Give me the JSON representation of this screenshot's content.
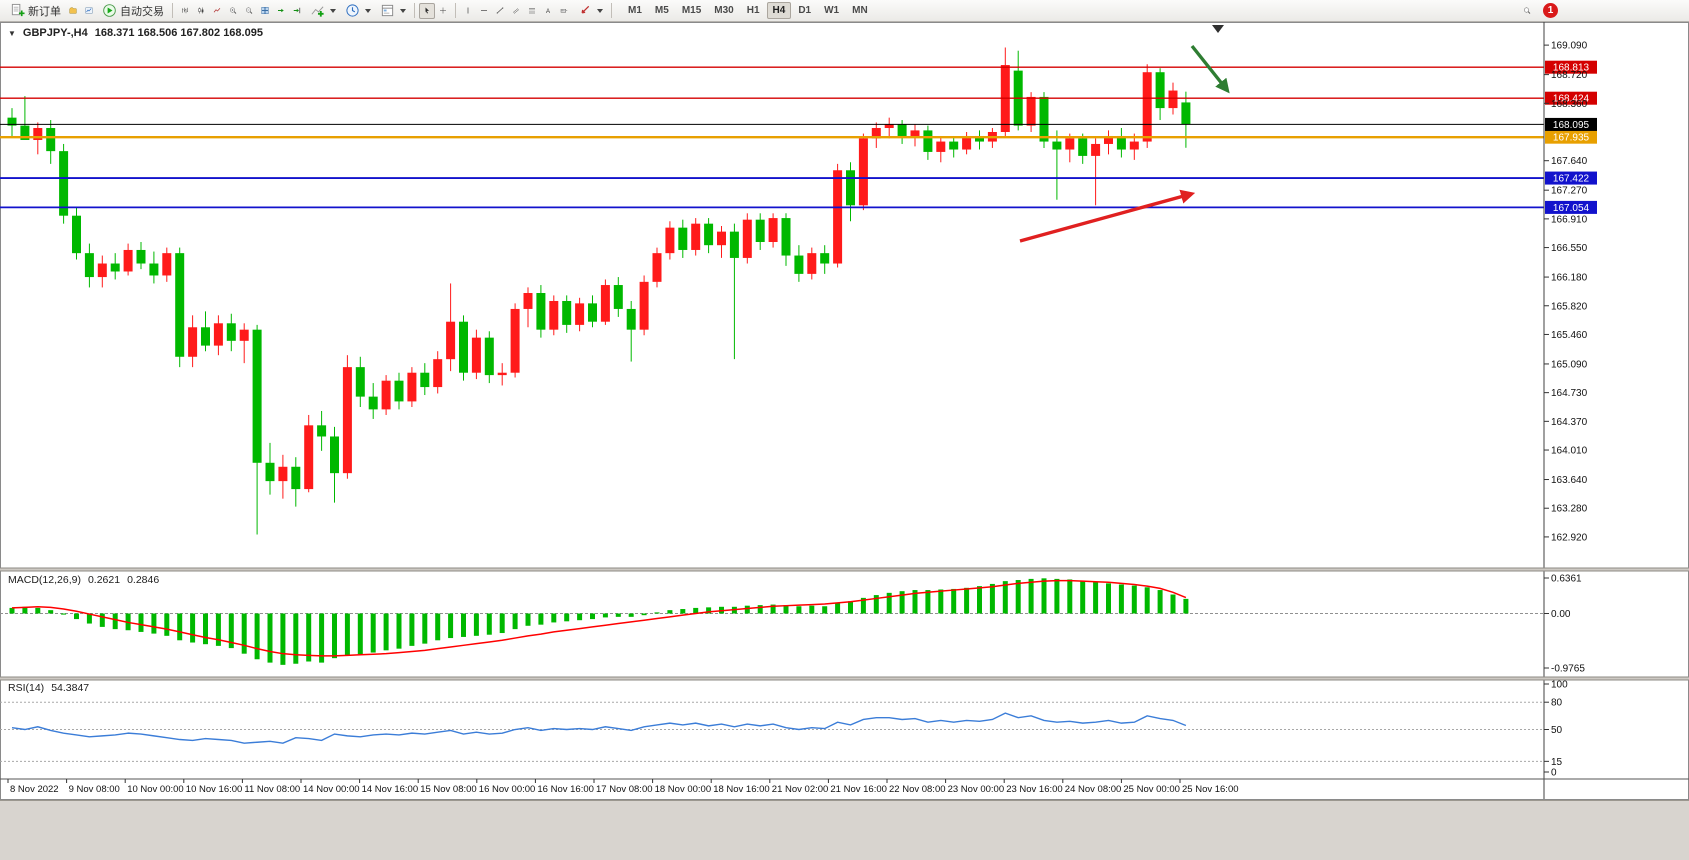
{
  "toolbar": {
    "new_order": {
      "label": "新订单"
    },
    "autotrade": {
      "label": "自动交易"
    },
    "timeframes": [
      "M1",
      "M5",
      "M15",
      "M30",
      "H1",
      "H4",
      "D1",
      "W1",
      "MN"
    ],
    "active_timeframe": "H4",
    "notification_badge": "1"
  },
  "chart_header": {
    "collapse_icon": "▼",
    "symbol": "GBPJPY-,H4",
    "ohlc_text": "168.371 168.506 167.802 168.095"
  },
  "macd_panel": {
    "label": "MACD(12,26,9)",
    "value_main": "0.2621",
    "value_signal": "0.2846",
    "axis_labels": [
      "0.6361",
      "0.00",
      "-0.9765"
    ]
  },
  "rsi_panel": {
    "label": "RSI(14)",
    "value": "54.3847",
    "axis_labels": [
      "100",
      "80",
      "50",
      "15",
      "0"
    ]
  },
  "chart_data": {
    "type": "candlestick",
    "symbol": "GBPJPY",
    "timeframe": "H4",
    "colors": {
      "up": "#ff1a1a",
      "down": "#00b800",
      "macd_hist": "#00b800",
      "macd_signal": "#ff0000",
      "rsi_line": "#3b7dd8"
    },
    "price_ylim": [
      162.53,
      169.38
    ],
    "price_axis_ticks": [
      "169.090",
      "168.720",
      "168.360",
      "167.640",
      "167.270",
      "166.910",
      "166.550",
      "166.180",
      "165.820",
      "165.460",
      "165.090",
      "164.730",
      "164.370",
      "164.010",
      "163.640",
      "163.280",
      "162.920"
    ],
    "hlines": [
      {
        "price": 168.813,
        "label": "168.813",
        "color": "#d40000",
        "width": 1.3
      },
      {
        "price": 168.424,
        "label": "168.424",
        "color": "#d40000",
        "width": 1.3
      },
      {
        "price": 167.935,
        "label": "167.935",
        "color": "#e8a000",
        "width": 2.4
      },
      {
        "price": 167.422,
        "label": "167.422",
        "color": "#1212cc",
        "width": 1.8
      },
      {
        "price": 167.054,
        "label": "167.054",
        "color": "#1212cc",
        "width": 1.8
      }
    ],
    "current_price": {
      "price": 168.095,
      "label": "168.095",
      "color": "#000000"
    },
    "time_labels": [
      "8 Nov 2022",
      "9 Nov 08:00",
      "10 Nov 00:00",
      "10 Nov 16:00",
      "11 Nov 08:00",
      "14 Nov 00:00",
      "14 Nov 16:00",
      "15 Nov 08:00",
      "16 Nov 00:00",
      "16 Nov 16:00",
      "17 Nov 08:00",
      "18 Nov 00:00",
      "18 Nov 16:00",
      "21 Nov 02:00",
      "21 Nov 16:00",
      "22 Nov 08:00",
      "23 Nov 00:00",
      "23 Nov 16:00",
      "24 Nov 08:00",
      "25 Nov 00:00",
      "25 Nov 16:00"
    ],
    "candles": [
      [
        168.18,
        168.3,
        167.95,
        168.08
      ],
      [
        168.08,
        168.45,
        167.92,
        167.9
      ],
      [
        167.9,
        168.12,
        167.72,
        168.05
      ],
      [
        168.05,
        168.15,
        167.6,
        167.76
      ],
      [
        167.76,
        167.85,
        166.85,
        166.95
      ],
      [
        166.95,
        167.05,
        166.4,
        166.48
      ],
      [
        166.48,
        166.6,
        166.05,
        166.18
      ],
      [
        166.18,
        166.45,
        166.05,
        166.35
      ],
      [
        166.35,
        166.48,
        166.15,
        166.25
      ],
      [
        166.25,
        166.6,
        166.2,
        166.52
      ],
      [
        166.52,
        166.62,
        166.28,
        166.35
      ],
      [
        166.35,
        166.5,
        166.1,
        166.2
      ],
      [
        166.2,
        166.55,
        166.12,
        166.48
      ],
      [
        166.48,
        166.55,
        165.05,
        165.18
      ],
      [
        165.18,
        165.7,
        165.05,
        165.55
      ],
      [
        165.55,
        165.75,
        165.25,
        165.32
      ],
      [
        165.32,
        165.7,
        165.2,
        165.6
      ],
      [
        165.6,
        165.72,
        165.25,
        165.38
      ],
      [
        165.38,
        165.6,
        165.1,
        165.52
      ],
      [
        165.52,
        165.58,
        162.95,
        163.85
      ],
      [
        163.85,
        164.1,
        163.45,
        163.62
      ],
      [
        163.62,
        163.95,
        163.4,
        163.8
      ],
      [
        163.8,
        163.92,
        163.3,
        163.52
      ],
      [
        163.52,
        164.45,
        163.48,
        164.32
      ],
      [
        164.32,
        164.5,
        164.0,
        164.18
      ],
      [
        164.18,
        164.3,
        163.35,
        163.72
      ],
      [
        163.72,
        165.2,
        163.65,
        165.05
      ],
      [
        165.05,
        165.18,
        164.55,
        164.68
      ],
      [
        164.68,
        164.85,
        164.4,
        164.52
      ],
      [
        164.52,
        164.95,
        164.45,
        164.88
      ],
      [
        164.88,
        164.98,
        164.52,
        164.62
      ],
      [
        164.62,
        165.05,
        164.55,
        164.98
      ],
      [
        164.98,
        165.1,
        164.7,
        164.8
      ],
      [
        164.8,
        165.25,
        164.72,
        165.15
      ],
      [
        165.15,
        166.1,
        165.0,
        165.62
      ],
      [
        165.62,
        165.7,
        164.88,
        164.98
      ],
      [
        164.98,
        165.52,
        164.9,
        165.42
      ],
      [
        165.42,
        165.5,
        164.85,
        164.95
      ],
      [
        164.95,
        165.1,
        164.82,
        164.98
      ],
      [
        164.98,
        165.85,
        164.92,
        165.78
      ],
      [
        165.78,
        166.05,
        165.55,
        165.98
      ],
      [
        165.98,
        166.08,
        165.42,
        165.52
      ],
      [
        165.52,
        165.95,
        165.45,
        165.88
      ],
      [
        165.88,
        165.95,
        165.48,
        165.58
      ],
      [
        165.58,
        165.92,
        165.5,
        165.85
      ],
      [
        165.85,
        165.95,
        165.55,
        165.62
      ],
      [
        165.62,
        166.15,
        165.58,
        166.08
      ],
      [
        166.08,
        166.18,
        165.68,
        165.78
      ],
      [
        165.78,
        165.88,
        165.12,
        165.52
      ],
      [
        165.52,
        166.2,
        165.45,
        166.12
      ],
      [
        166.12,
        166.55,
        166.05,
        166.48
      ],
      [
        166.48,
        166.88,
        166.4,
        166.8
      ],
      [
        166.8,
        166.9,
        166.42,
        166.52
      ],
      [
        166.52,
        166.92,
        166.45,
        166.85
      ],
      [
        166.85,
        166.92,
        166.48,
        166.58
      ],
      [
        166.58,
        166.82,
        166.42,
        166.75
      ],
      [
        166.75,
        166.85,
        165.15,
        166.42
      ],
      [
        166.42,
        166.98,
        166.35,
        166.9
      ],
      [
        166.9,
        166.98,
        166.52,
        166.62
      ],
      [
        166.62,
        166.98,
        166.55,
        166.92
      ],
      [
        166.92,
        166.98,
        166.32,
        166.45
      ],
      [
        166.45,
        166.58,
        166.12,
        166.22
      ],
      [
        166.22,
        166.55,
        166.15,
        166.48
      ],
      [
        166.48,
        166.58,
        166.22,
        166.35
      ],
      [
        166.35,
        167.6,
        166.3,
        167.52
      ],
      [
        167.52,
        167.62,
        166.88,
        167.08
      ],
      [
        167.08,
        167.98,
        167.02,
        167.92
      ],
      [
        167.92,
        168.12,
        167.8,
        168.05
      ],
      [
        168.05,
        168.18,
        167.92,
        168.1
      ],
      [
        168.1,
        168.15,
        167.85,
        167.95
      ],
      [
        167.95,
        168.1,
        167.82,
        168.02
      ],
      [
        168.02,
        168.08,
        167.65,
        167.75
      ],
      [
        167.75,
        167.95,
        167.62,
        167.88
      ],
      [
        167.88,
        167.95,
        167.68,
        167.78
      ],
      [
        167.78,
        168.0,
        167.72,
        167.95
      ],
      [
        167.95,
        168.02,
        167.78,
        167.88
      ],
      [
        167.88,
        168.05,
        167.8,
        168.0
      ],
      [
        168.0,
        169.06,
        167.95,
        168.84
      ],
      [
        168.77,
        169.02,
        168.02,
        168.08
      ],
      [
        168.08,
        168.5,
        168.0,
        168.44
      ],
      [
        168.44,
        168.5,
        167.8,
        167.88
      ],
      [
        167.88,
        168.02,
        167.15,
        167.78
      ],
      [
        167.78,
        167.98,
        167.62,
        167.92
      ],
      [
        167.92,
        167.98,
        167.6,
        167.7
      ],
      [
        167.7,
        167.92,
        167.08,
        167.85
      ],
      [
        167.85,
        168.02,
        167.72,
        167.95
      ],
      [
        167.95,
        168.05,
        167.68,
        167.78
      ],
      [
        167.78,
        167.98,
        167.65,
        167.88
      ],
      [
        167.88,
        168.85,
        167.8,
        168.75
      ],
      [
        168.75,
        168.8,
        168.15,
        168.3
      ],
      [
        168.3,
        168.62,
        168.22,
        168.52
      ],
      [
        168.371,
        168.506,
        167.802,
        168.095
      ]
    ],
    "macd": {
      "max": 0.6361,
      "min": -0.9765,
      "hist": [
        0.1,
        0.12,
        0.1,
        0.06,
        -0.02,
        -0.1,
        -0.18,
        -0.24,
        -0.28,
        -0.3,
        -0.33,
        -0.36,
        -0.4,
        -0.48,
        -0.52,
        -0.55,
        -0.58,
        -0.62,
        -0.72,
        -0.82,
        -0.88,
        -0.92,
        -0.9,
        -0.86,
        -0.88,
        -0.8,
        -0.76,
        -0.73,
        -0.7,
        -0.66,
        -0.63,
        -0.58,
        -0.54,
        -0.48,
        -0.44,
        -0.42,
        -0.4,
        -0.38,
        -0.35,
        -0.28,
        -0.22,
        -0.2,
        -0.16,
        -0.14,
        -0.12,
        -0.1,
        -0.07,
        -0.06,
        -0.06,
        -0.03,
        0.02,
        0.06,
        0.08,
        0.1,
        0.11,
        0.12,
        0.12,
        0.14,
        0.15,
        0.16,
        0.15,
        0.13,
        0.14,
        0.13,
        0.18,
        0.22,
        0.28,
        0.33,
        0.37,
        0.4,
        0.42,
        0.42,
        0.43,
        0.44,
        0.46,
        0.49,
        0.53,
        0.58,
        0.6,
        0.62,
        0.63,
        0.62,
        0.61,
        0.59,
        0.57,
        0.54,
        0.52,
        0.5,
        0.47,
        0.42,
        0.34,
        0.2621
      ],
      "signal": [
        0.1,
        0.11,
        0.12,
        0.11,
        0.08,
        0.04,
        -0.01,
        -0.06,
        -0.11,
        -0.16,
        -0.2,
        -0.24,
        -0.28,
        -0.33,
        -0.38,
        -0.43,
        -0.47,
        -0.52,
        -0.57,
        -0.63,
        -0.68,
        -0.72,
        -0.74,
        -0.75,
        -0.76,
        -0.76,
        -0.75,
        -0.74,
        -0.73,
        -0.72,
        -0.7,
        -0.68,
        -0.66,
        -0.63,
        -0.6,
        -0.57,
        -0.54,
        -0.51,
        -0.48,
        -0.44,
        -0.4,
        -0.37,
        -0.33,
        -0.3,
        -0.27,
        -0.24,
        -0.21,
        -0.18,
        -0.15,
        -0.12,
        -0.09,
        -0.06,
        -0.03,
        0.0,
        0.03,
        0.05,
        0.07,
        0.09,
        0.11,
        0.13,
        0.14,
        0.15,
        0.16,
        0.17,
        0.19,
        0.21,
        0.24,
        0.27,
        0.3,
        0.33,
        0.36,
        0.38,
        0.4,
        0.42,
        0.44,
        0.46,
        0.48,
        0.51,
        0.54,
        0.56,
        0.58,
        0.59,
        0.59,
        0.58,
        0.57,
        0.56,
        0.54,
        0.52,
        0.49,
        0.45,
        0.38,
        0.2846
      ]
    },
    "rsi": {
      "levels": [
        80,
        50,
        15
      ],
      "values": [
        52,
        50,
        53,
        49,
        46,
        44,
        42,
        43,
        44,
        46,
        45,
        43,
        41,
        39,
        38,
        40,
        39,
        38,
        35,
        36,
        37,
        35,
        41,
        40,
        38,
        45,
        43,
        42,
        44,
        45,
        44,
        46,
        45,
        47,
        49,
        45,
        47,
        45,
        46,
        50,
        52,
        49,
        51,
        50,
        51,
        50,
        53,
        51,
        49,
        53,
        55,
        57,
        55,
        57,
        54,
        56,
        53,
        56,
        54,
        56,
        52,
        50,
        52,
        51,
        58,
        55,
        61,
        63,
        63,
        61,
        62,
        58,
        60,
        58,
        60,
        59,
        61,
        68,
        63,
        65,
        60,
        58,
        59,
        57,
        58,
        60,
        57,
        58,
        65,
        62,
        60,
        54.38
      ]
    },
    "annotations": [
      {
        "type": "arrow",
        "color": "#2e7d32",
        "from": [
          1192,
          46
        ],
        "to": [
          1227,
          90
        ]
      },
      {
        "type": "arrow",
        "color": "#e02020",
        "from": [
          1020,
          241
        ],
        "to": [
          1191,
          194
        ]
      }
    ]
  }
}
